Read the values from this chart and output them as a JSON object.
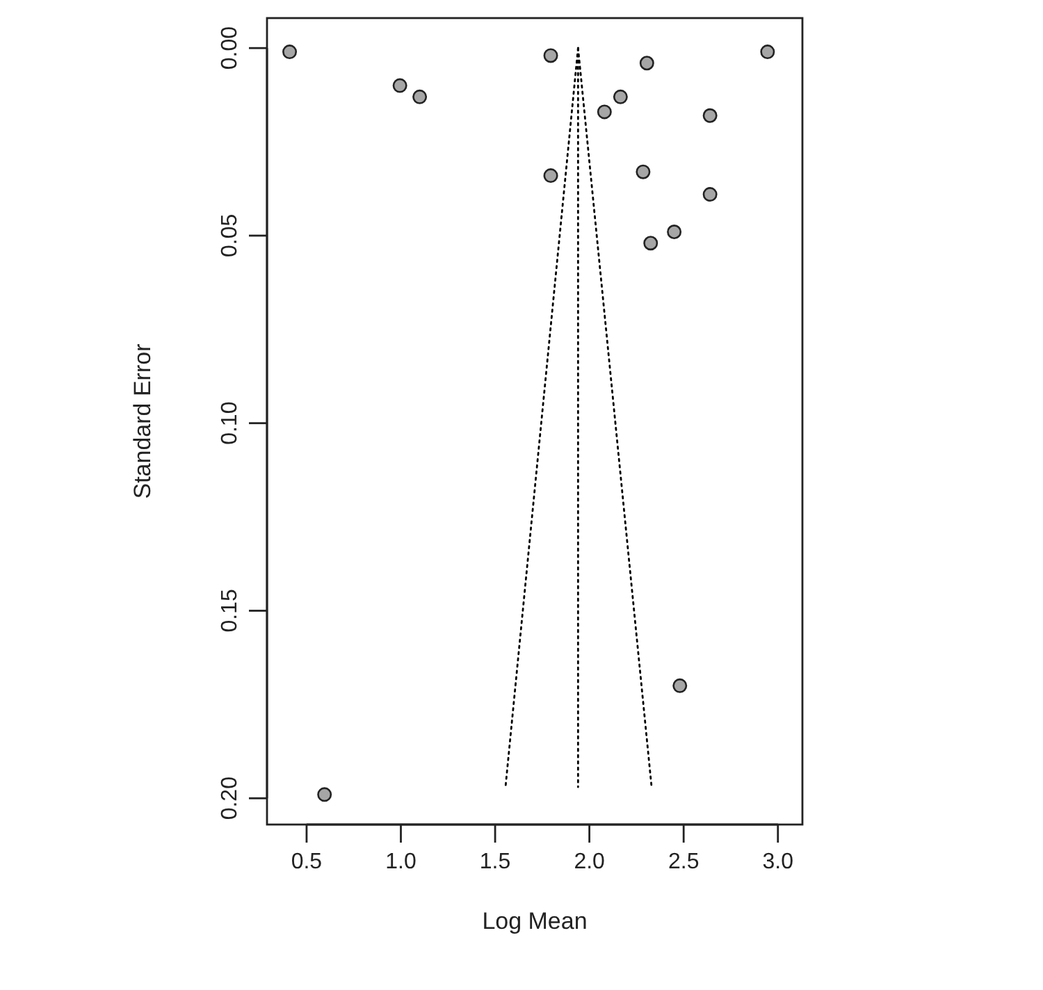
{
  "chart_data": {
    "type": "scatter",
    "xlabel": "Log Mean",
    "ylabel": "Standard Error",
    "xlim": [
      0.29,
      3.13
    ],
    "ylim": [
      0.207,
      -0.008
    ],
    "xticks": [
      {
        "value": 0.5,
        "label": "0.5"
      },
      {
        "value": 1,
        "label": "1.0"
      },
      {
        "value": 1.5,
        "label": "1.5"
      },
      {
        "value": 2,
        "label": "2.0"
      },
      {
        "value": 2.5,
        "label": "2.5"
      },
      {
        "value": 3,
        "label": "3.0"
      }
    ],
    "yticks": [
      {
        "value": 0,
        "label": "0.00"
      },
      {
        "value": 0.05,
        "label": "0.05"
      },
      {
        "value": 0.1,
        "label": "0.10"
      },
      {
        "value": 0.15,
        "label": "0.15"
      },
      {
        "value": 0.2,
        "label": "0.20"
      }
    ],
    "grid": false,
    "series": [
      {
        "color": "#a6a6a6",
        "marker": "circle",
        "x": [
          0.41,
          0.995,
          1.1,
          1.795,
          1.795,
          2.08,
          2.165,
          2.305,
          2.285,
          2.64,
          2.64,
          2.45,
          2.325,
          2.945,
          2.48,
          0.595
        ],
        "values": [
          0.001,
          0.01,
          0.013,
          0.002,
          0.034,
          0.017,
          0.013,
          0.004,
          0.033,
          0.018,
          0.039,
          0.049,
          0.052,
          0.001,
          0.17,
          0.199
        ]
      },
      {
        "type": "line",
        "color": "#000000",
        "line_style": "dotted",
        "x": [
          1.94,
          1.94
        ],
        "values": [
          0,
          0.197
        ]
      },
      {
        "type": "line",
        "color": "#000000",
        "line_style": "dotted",
        "x": [
          1.94,
          1.555
        ],
        "values": [
          0,
          0.197
        ]
      },
      {
        "type": "line",
        "color": "#000000",
        "line_style": "dotted",
        "x": [
          1.94,
          2.33
        ],
        "values": [
          0,
          0.197
        ]
      }
    ]
  }
}
